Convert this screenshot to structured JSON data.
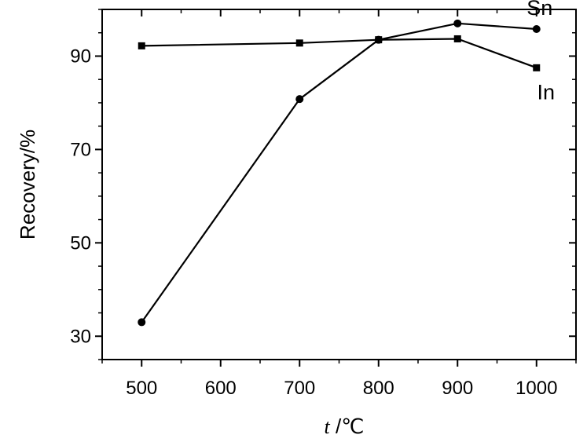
{
  "chart_data": {
    "type": "line",
    "xlabel_italic": "t",
    "xlabel_unit": " /℃",
    "ylabel": "Recovery/%",
    "xlim": [
      450,
      1050
    ],
    "ylim": [
      25,
      100
    ],
    "x_ticks": [
      500,
      600,
      700,
      800,
      900,
      1000
    ],
    "x_tick_labels": [
      "500",
      "600",
      "700",
      "800",
      "900",
      "1000"
    ],
    "y_ticks": [
      30,
      50,
      70,
      90
    ],
    "y_tick_labels": [
      "30",
      "50",
      "70",
      "90"
    ],
    "grid": false,
    "series": [
      {
        "name": "Sn",
        "marker": "circle",
        "x": [
          500,
          700,
          800,
          900,
          1000
        ],
        "values": [
          33,
          80.8,
          93.5,
          97,
          95.8
        ]
      },
      {
        "name": "In",
        "marker": "square",
        "x": [
          500,
          700,
          800,
          900,
          1000
        ],
        "values": [
          92.2,
          92.8,
          93.5,
          93.7,
          87.5
        ]
      }
    ]
  }
}
